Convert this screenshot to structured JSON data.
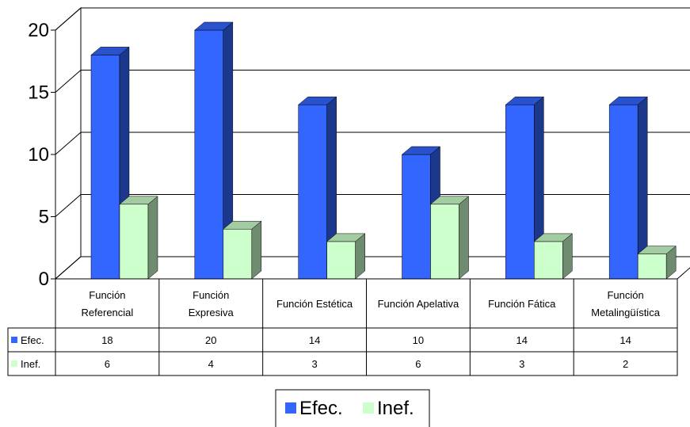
{
  "chart_data": {
    "type": "bar",
    "categories": [
      [
        "Función",
        "Referencial"
      ],
      [
        "Función",
        "Expresiva"
      ],
      [
        "Función Estética"
      ],
      [
        "Función Apelativa"
      ],
      [
        "Función Fática"
      ],
      [
        "Función",
        "Metalingüística"
      ]
    ],
    "series": [
      {
        "name": "Efec.",
        "values": [
          18,
          20,
          14,
          10,
          14,
          14
        ],
        "color": "#3366ff"
      },
      {
        "name": "Inef.",
        "values": [
          6,
          4,
          3,
          6,
          3,
          2
        ],
        "color": "#ccffcc"
      }
    ],
    "ylim": [
      0,
      20
    ],
    "yticks": [
      0,
      5,
      10,
      15,
      20
    ],
    "grid": true,
    "data_table": true,
    "legend": "bottom-center"
  }
}
